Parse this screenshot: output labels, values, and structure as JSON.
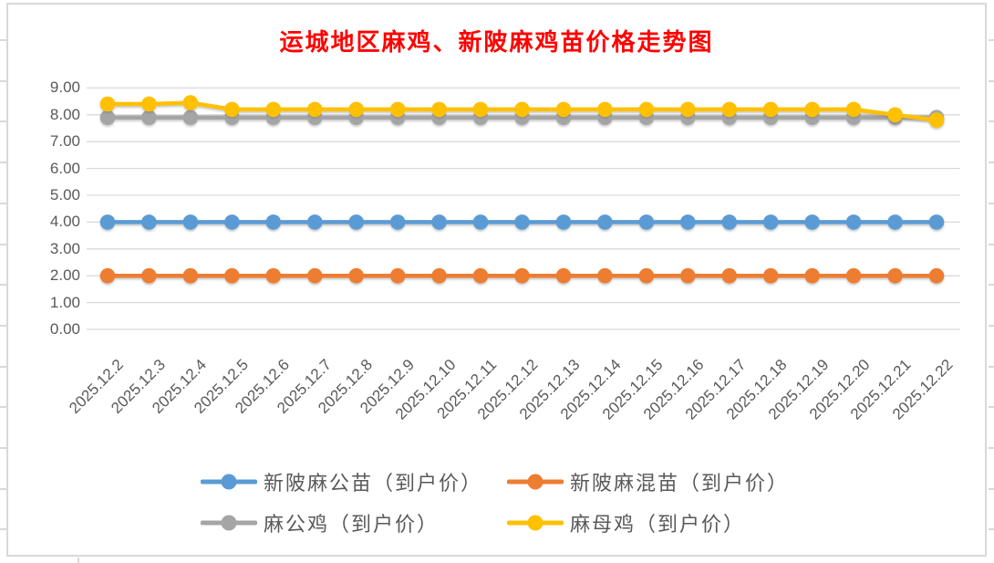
{
  "chart_data": {
    "type": "line",
    "title": "运城地区麻鸡、新陂麻鸡苗价格走势图",
    "title_color": "#FF0000",
    "categories": [
      "2025.12.2",
      "2025.12.3",
      "2025.12.4",
      "2025.12.5",
      "2025.12.6",
      "2025.12.7",
      "2025.12.8",
      "2025.12.9",
      "2025.12.10",
      "2025.12.11",
      "2025.12.12",
      "2025.12.13",
      "2025.12.14",
      "2025.12.15",
      "2025.12.16",
      "2025.12.17",
      "2025.12.18",
      "2025.12.19",
      "2025.12.20",
      "2025.12.21",
      "2025.12.22"
    ],
    "series": [
      {
        "name": "新陂麻公苗（到户价）",
        "color": "#5B9BD5",
        "values": [
          4.0,
          4.0,
          4.0,
          4.0,
          4.0,
          4.0,
          4.0,
          4.0,
          4.0,
          4.0,
          4.0,
          4.0,
          4.0,
          4.0,
          4.0,
          4.0,
          4.0,
          4.0,
          4.0,
          4.0,
          4.0
        ]
      },
      {
        "name": "新陂麻混苗（到户价）",
        "color": "#ED7D31",
        "values": [
          2.0,
          2.0,
          2.0,
          2.0,
          2.0,
          2.0,
          2.0,
          2.0,
          2.0,
          2.0,
          2.0,
          2.0,
          2.0,
          2.0,
          2.0,
          2.0,
          2.0,
          2.0,
          2.0,
          2.0,
          2.0
        ]
      },
      {
        "name": "麻公鸡（到户价）",
        "color": "#A5A5A5",
        "values": [
          7.9,
          7.9,
          7.9,
          7.9,
          7.9,
          7.9,
          7.9,
          7.9,
          7.9,
          7.9,
          7.9,
          7.9,
          7.9,
          7.9,
          7.9,
          7.9,
          7.9,
          7.9,
          7.9,
          7.9,
          7.9
        ]
      },
      {
        "name": "麻母鸡（到户价）",
        "color": "#FFC000",
        "values": [
          8.4,
          8.4,
          8.45,
          8.2,
          8.2,
          8.2,
          8.2,
          8.2,
          8.2,
          8.2,
          8.2,
          8.2,
          8.2,
          8.2,
          8.2,
          8.2,
          8.2,
          8.2,
          8.2,
          8.0,
          7.8
        ]
      }
    ],
    "ylim": [
      0,
      9
    ],
    "y_ticks": [
      "9.00",
      "8.00",
      "7.00",
      "6.00",
      "5.00",
      "4.00",
      "3.00",
      "2.00",
      "1.00",
      "0.00"
    ],
    "grid": true,
    "gridline_color": "#D9D9D9",
    "axis_text_color": "#595959",
    "x_tick_rotation": 45,
    "legend_position": "bottom",
    "marker": "circle"
  }
}
